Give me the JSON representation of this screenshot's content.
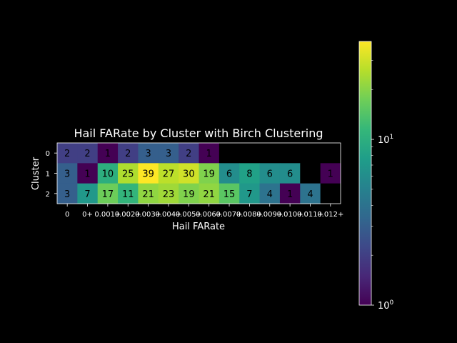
{
  "chart_data": {
    "type": "heatmap",
    "title": "Hail FARate by Cluster with Birch Clustering",
    "xlabel": "Hail FARate",
    "ylabel": "Cluster",
    "x_categories": [
      "0",
      "0+",
      "0.001+",
      "0.002+",
      "0.003+",
      "0.004+",
      "0.005+",
      "0.006+",
      "0.007+",
      "0.008+",
      "0.009+",
      "0.010+",
      "0.011+",
      "0.012+"
    ],
    "y_categories": [
      "0",
      "1",
      "2"
    ],
    "values": [
      [
        2,
        2,
        1,
        2,
        3,
        3,
        2,
        1,
        null,
        null,
        null,
        null,
        null,
        null
      ],
      [
        3,
        1,
        10,
        25,
        39,
        27,
        30,
        19,
        6,
        8,
        6,
        6,
        null,
        1
      ],
      [
        3,
        7,
        17,
        11,
        21,
        23,
        19,
        21,
        15,
        7,
        4,
        1,
        4,
        null
      ]
    ],
    "colormap": "viridis",
    "color_scale": "log",
    "colorbar": {
      "min": 1,
      "max": 39,
      "tick_labels": [
        {
          "base": "10",
          "exp": "0",
          "value": 1
        },
        {
          "base": "10",
          "exp": "1",
          "value": 10
        }
      ]
    },
    "missing_color": "#000000"
  }
}
